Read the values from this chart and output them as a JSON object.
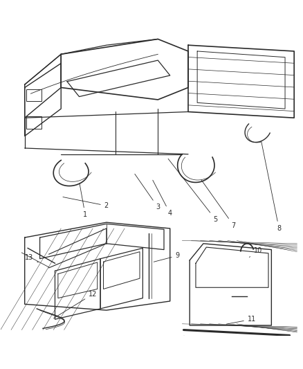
{
  "background_color": "#ffffff",
  "line_color": "#2a2a2a",
  "label_color": "#111111",
  "figsize": [
    4.39,
    5.33
  ],
  "dpi": 100
}
